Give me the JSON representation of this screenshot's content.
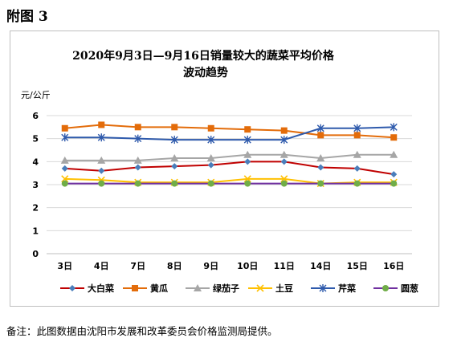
{
  "figure_label": "附图 3",
  "note": "备注：此图数据由沈阳市发展和改革委员会价格监测局提供。",
  "chart_data": {
    "type": "line",
    "title_line1": "2020年9月3日—9月16日销量较大的蔬菜平均价格",
    "title_line2": "波动趋势",
    "ylabel": "元/公斤",
    "xlabel": "",
    "categories": [
      "3日",
      "4日",
      "7日",
      "8日",
      "9日",
      "10日",
      "11日",
      "14日",
      "15日",
      "16日"
    ],
    "ylim": [
      0,
      6
    ],
    "yticks": [
      "0",
      "1",
      "2",
      "3",
      "4",
      "5",
      "6"
    ],
    "grid": true,
    "legend_position": "bottom",
    "series": [
      {
        "name": "大白菜",
        "color": "#c00000",
        "marker": "diamond",
        "marker_color": "#4a7ebb",
        "values": [
          3.7,
          3.6,
          3.75,
          3.8,
          3.85,
          4.0,
          4.0,
          3.75,
          3.7,
          3.45
        ]
      },
      {
        "name": "黄瓜",
        "color": "#e36c0a",
        "marker": "square",
        "marker_color": "#e36c0a",
        "values": [
          5.45,
          5.6,
          5.5,
          5.5,
          5.45,
          5.4,
          5.35,
          5.15,
          5.15,
          5.05
        ]
      },
      {
        "name": "绿茄子",
        "color": "#a6a6a6",
        "marker": "triangle",
        "marker_color": "#a6a6a6",
        "values": [
          4.05,
          4.05,
          4.05,
          4.15,
          4.15,
          4.3,
          4.3,
          4.15,
          4.3,
          4.3
        ]
      },
      {
        "name": "土豆",
        "color": "#ffc000",
        "marker": "x",
        "marker_color": "#ffc000",
        "values": [
          3.25,
          3.2,
          3.1,
          3.1,
          3.1,
          3.25,
          3.25,
          3.05,
          3.1,
          3.1
        ]
      },
      {
        "name": "芹菜",
        "color": "#2e5aac",
        "marker": "star",
        "marker_color": "#2e5aac",
        "values": [
          5.05,
          5.05,
          5.0,
          4.95,
          4.95,
          4.95,
          4.95,
          5.45,
          5.45,
          5.5
        ]
      },
      {
        "name": "圆葱",
        "color": "#7030a0",
        "marker": "circle",
        "marker_color": "#70ad47",
        "values": [
          3.05,
          3.05,
          3.05,
          3.05,
          3.05,
          3.05,
          3.05,
          3.05,
          3.05,
          3.05
        ]
      }
    ]
  }
}
